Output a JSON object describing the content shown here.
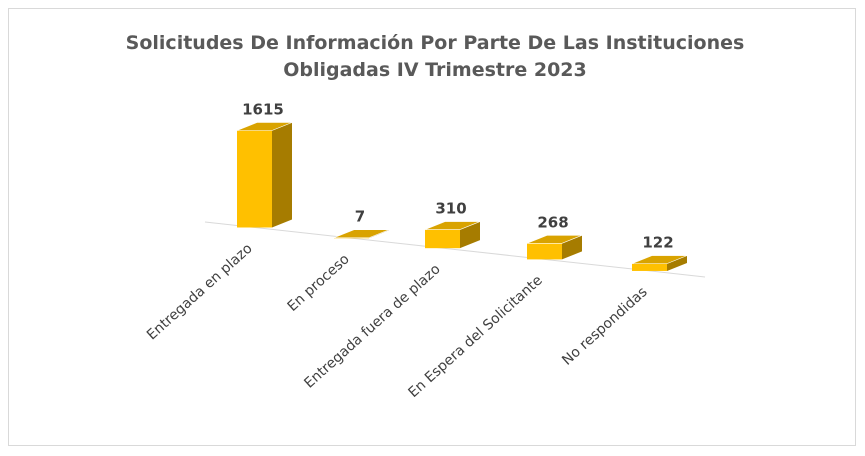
{
  "chart_data": {
    "type": "bar3d",
    "title": "Solicitudes De Información Por Parte De Las Instituciones Obligadas IV Trimestre 2023",
    "categories": [
      "Entregada en plazo",
      "En proceso",
      "Entregada fuera de plazo",
      "En Espera del Solicitante",
      "No respondidas"
    ],
    "values": [
      1615,
      7,
      310,
      268,
      122
    ],
    "color": "#ffc000"
  }
}
